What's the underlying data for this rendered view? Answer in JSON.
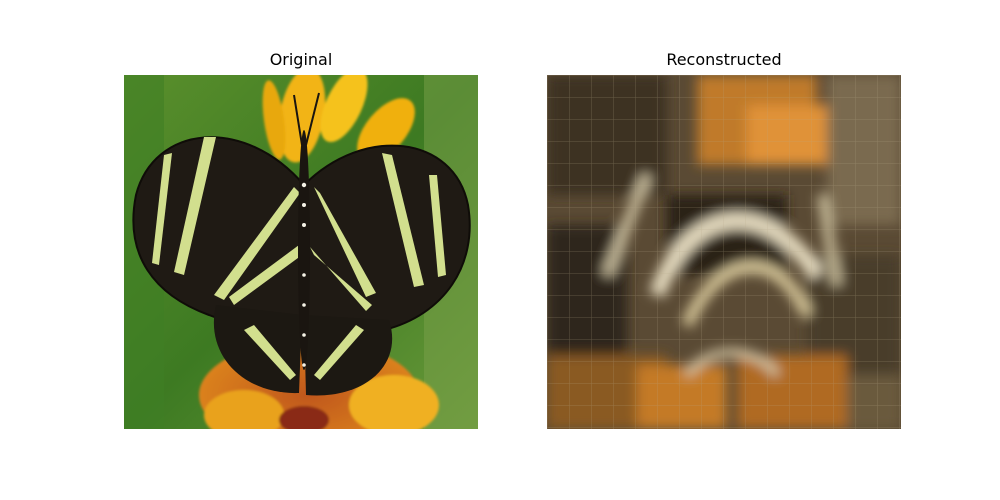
{
  "figure": {
    "panels": [
      {
        "title": "Original",
        "image_description": "Zebra longwing butterfly (black wings with pale yellow stripes) on yellow/orange flowers against green foliage"
      },
      {
        "title": "Reconstructed",
        "image_description": "Blurry, blocky reconstruction of the butterfly with a visible grid pattern; brown, orange and cream tones"
      }
    ]
  }
}
